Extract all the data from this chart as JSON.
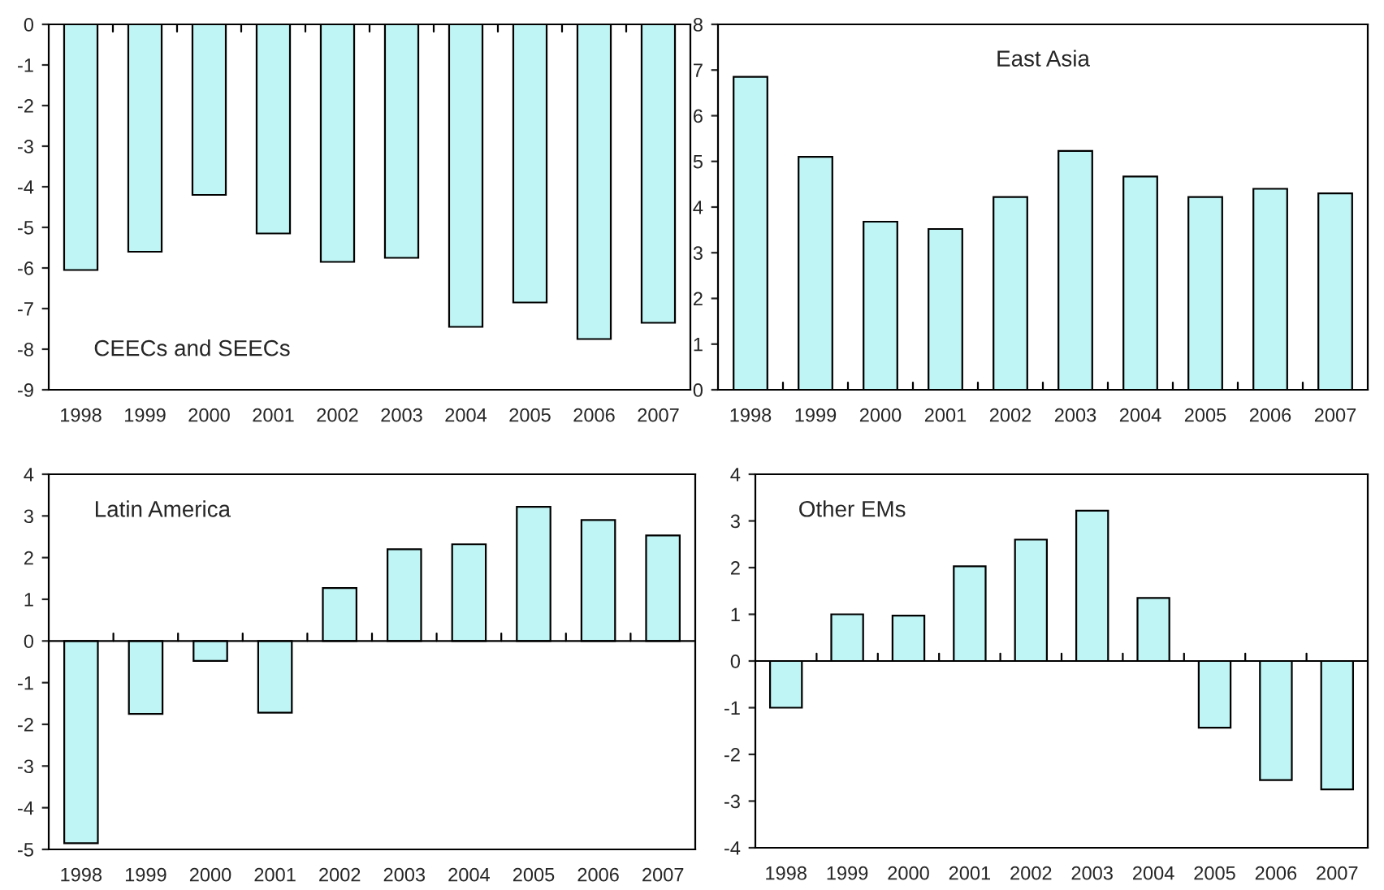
{
  "chart_data": [
    {
      "type": "bar",
      "categories": [
        "1998",
        "1999",
        "2000",
        "2001",
        "2002",
        "2003",
        "2004",
        "2005",
        "2006",
        "2007"
      ],
      "values": [
        -6.05,
        -5.6,
        -4.2,
        -5.15,
        -5.85,
        -5.75,
        -7.45,
        -6.85,
        -7.75,
        -7.35
      ],
      "color": "#bff5f5",
      "ylim": [
        -9,
        0
      ],
      "yticks": [
        -9,
        -8,
        -7,
        -6,
        -5,
        -4,
        -3,
        -2,
        -1,
        0
      ],
      "annotations": [
        "CEECs and SEECs"
      ],
      "grid": false
    },
    {
      "type": "bar",
      "categories": [
        "1998",
        "1999",
        "2000",
        "2001",
        "2002",
        "2003",
        "2004",
        "2005",
        "2006",
        "2007"
      ],
      "values": [
        6.85,
        5.1,
        3.68,
        3.52,
        4.22,
        5.23,
        4.67,
        4.22,
        4.4,
        4.3
      ],
      "color": "#bff5f5",
      "ylim": [
        0,
        8
      ],
      "yticks": [
        0,
        1,
        2,
        3,
        4,
        5,
        6,
        7,
        8
      ],
      "annotations": [
        "East Asia"
      ],
      "grid": false
    },
    {
      "type": "bar",
      "categories": [
        "1998",
        "1999",
        "2000",
        "2001",
        "2002",
        "2003",
        "2004",
        "2005",
        "2006",
        "2007"
      ],
      "values": [
        -4.85,
        -1.75,
        -0.48,
        -1.72,
        1.27,
        2.2,
        2.32,
        3.22,
        2.9,
        2.53
      ],
      "color": "#bff5f5",
      "ylim": [
        -5,
        4
      ],
      "yticks": [
        -5,
        -4,
        -3,
        -2,
        -1,
        0,
        1,
        2,
        3,
        4
      ],
      "annotations": [
        "Latin America"
      ],
      "ref_lines": [
        {
          "axis": "y",
          "value": 0,
          "color": "#000000"
        }
      ],
      "grid": false
    },
    {
      "type": "bar",
      "categories": [
        "1998",
        "1999",
        "2000",
        "2001",
        "2002",
        "2003",
        "2004",
        "2005",
        "2006",
        "2007"
      ],
      "values": [
        -1.0,
        1.0,
        0.97,
        2.03,
        2.6,
        3.22,
        1.35,
        -1.43,
        -2.55,
        -2.75
      ],
      "color": "#bff5f5",
      "ylim": [
        -4,
        4
      ],
      "yticks": [
        -4,
        -3,
        -2,
        -1,
        0,
        1,
        2,
        3,
        4
      ],
      "annotations": [
        "Other EMs"
      ],
      "ref_lines": [
        {
          "axis": "y",
          "value": 0,
          "color": "#000000"
        }
      ],
      "grid": false
    }
  ]
}
